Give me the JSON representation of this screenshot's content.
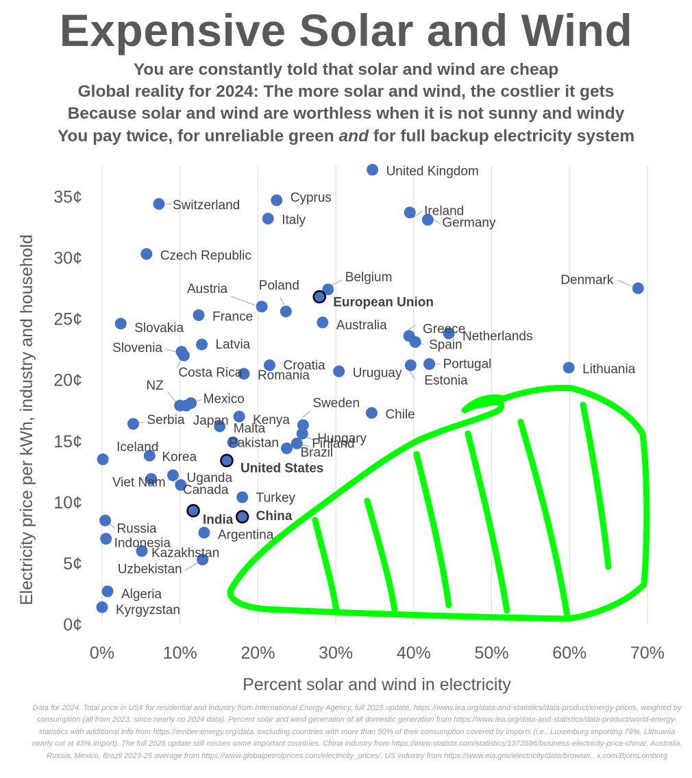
{
  "header": {
    "title": "Expensive Solar and Wind",
    "subtitles": [
      "You are constantly told that solar and wind are cheap",
      "Global reality for 2024: The more solar and wind, the costlier it gets",
      "Because solar and wind are worthless when it is not sunny and windy",
      "You pay twice, for unreliable green and for full backup electricity system"
    ],
    "subtitle4": {
      "before": "You pay twice, for unreliable green ",
      "emph": "and",
      "after": " for full backup electricity system"
    }
  },
  "colors": {
    "point": "#4472C4",
    "highlight_outline": "#000000",
    "text": "#595959",
    "annotation": "#00FF00",
    "grid": "#D9D9D9"
  },
  "chart_data": {
    "type": "scatter",
    "xlabel": "Percent solar and wind in electricity",
    "ylabel": "Electricity price per kWh, industry and household",
    "xlim": [
      0,
      70
    ],
    "ylim": [
      0,
      37.5
    ],
    "x_ticks": [
      0,
      10,
      20,
      30,
      40,
      50,
      60,
      70
    ],
    "x_tick_labels": [
      "0%",
      "10%",
      "20%",
      "30%",
      "40%",
      "50%",
      "60%",
      "70%"
    ],
    "y_ticks": [
      0,
      5,
      10,
      15,
      20,
      25,
      30,
      35
    ],
    "y_tick_labels": [
      "0¢",
      "5¢",
      "10¢",
      "15¢",
      "20¢",
      "25¢",
      "30¢",
      "35¢"
    ],
    "grid": "vertical",
    "points": [
      {
        "name": "United Kingdom",
        "x": 34.7,
        "y": 37.2
      },
      {
        "name": "Switzerland",
        "x": 7.3,
        "y": 34.4
      },
      {
        "name": "Cyprus",
        "x": 22.4,
        "y": 34.7
      },
      {
        "name": "Italy",
        "x": 21.3,
        "y": 33.2
      },
      {
        "name": "Ireland",
        "x": 39.5,
        "y": 33.7
      },
      {
        "name": "Germany",
        "x": 41.8,
        "y": 33.1
      },
      {
        "name": "Czech Republic",
        "x": 5.7,
        "y": 30.3
      },
      {
        "name": "Belgium",
        "x": 29.0,
        "y": 27.4
      },
      {
        "name": "European Union",
        "x": 27.9,
        "y": 26.8,
        "highlight": true
      },
      {
        "name": "Denmark",
        "x": 68.8,
        "y": 27.5
      },
      {
        "name": "Austria",
        "x": 20.5,
        "y": 26.0
      },
      {
        "name": "Poland",
        "x": 23.6,
        "y": 25.6
      },
      {
        "name": "France",
        "x": 12.4,
        "y": 25.3
      },
      {
        "name": "Australia",
        "x": 28.3,
        "y": 24.7
      },
      {
        "name": "Slovakia",
        "x": 2.4,
        "y": 24.6
      },
      {
        "name": "Greece",
        "x": 39.4,
        "y": 23.6
      },
      {
        "name": "Netherlands",
        "x": 44.5,
        "y": 23.8
      },
      {
        "name": "Spain",
        "x": 40.2,
        "y": 23.1
      },
      {
        "name": "Latvia",
        "x": 12.8,
        "y": 22.9
      },
      {
        "name": "Slovenia",
        "x": 10.2,
        "y": 22.3
      },
      {
        "name": "Costa Rica",
        "x": 10.5,
        "y": 22.0
      },
      {
        "name": "Croatia",
        "x": 21.5,
        "y": 21.2
      },
      {
        "name": "Portugal",
        "x": 42.0,
        "y": 21.3
      },
      {
        "name": "Estonia",
        "x": 39.6,
        "y": 21.2
      },
      {
        "name": "Lithuania",
        "x": 59.9,
        "y": 21.0
      },
      {
        "name": "Uruguay",
        "x": 30.4,
        "y": 20.7
      },
      {
        "name": "Romania",
        "x": 18.2,
        "y": 20.5
      },
      {
        "name": "NZ",
        "x": 10.0,
        "y": 17.9
      },
      {
        "name": "Mexico",
        "x": 11.4,
        "y": 18.1
      },
      {
        "name": "Japan",
        "x": 10.8,
        "y": 17.9
      },
      {
        "name": "Kenya",
        "x": 17.6,
        "y": 17.0
      },
      {
        "name": "Chile",
        "x": 34.6,
        "y": 17.3
      },
      {
        "name": "Sweden",
        "x": 25.8,
        "y": 16.3
      },
      {
        "name": "Serbia",
        "x": 4.0,
        "y": 16.4
      },
      {
        "name": "Malta",
        "x": 15.1,
        "y": 16.2
      },
      {
        "name": "Hungary",
        "x": 25.7,
        "y": 15.6
      },
      {
        "name": "Finland",
        "x": 25.0,
        "y": 14.8
      },
      {
        "name": "Pakistan",
        "x": 16.8,
        "y": 14.9
      },
      {
        "name": "Iceland",
        "x": 0.1,
        "y": 13.5
      },
      {
        "name": "Brazil",
        "x": 23.7,
        "y": 14.4
      },
      {
        "name": "Korea",
        "x": 6.1,
        "y": 13.8
      },
      {
        "name": "United States",
        "x": 16.0,
        "y": 13.4,
        "highlight": true
      },
      {
        "name": "Uganda",
        "x": 9.1,
        "y": 12.2
      },
      {
        "name": "Viet Nam",
        "x": 6.3,
        "y": 11.9
      },
      {
        "name": "Canada",
        "x": 10.1,
        "y": 11.4
      },
      {
        "name": "Turkey",
        "x": 18.0,
        "y": 10.4
      },
      {
        "name": "India",
        "x": 11.7,
        "y": 9.3,
        "highlight": true
      },
      {
        "name": "China",
        "x": 18.0,
        "y": 8.8,
        "highlight": true
      },
      {
        "name": "Russia",
        "x": 0.4,
        "y": 8.5
      },
      {
        "name": "Argentina",
        "x": 13.1,
        "y": 7.5
      },
      {
        "name": "Indonesia",
        "x": 0.5,
        "y": 7.0
      },
      {
        "name": "Kazakhstan",
        "x": 5.1,
        "y": 6.0
      },
      {
        "name": "Uzbekistan",
        "x": 12.9,
        "y": 5.3
      },
      {
        "name": "Algeria",
        "x": 0.7,
        "y": 2.7
      },
      {
        "name": "Kyrgyzstan",
        "x": 0.0,
        "y": 1.4
      }
    ]
  },
  "footnote": "Data for 2024. Total price in US¢ for residential and industry from International Energy Agency, full 2025 update, https://www.iea.org/data-and-statistics/data-product/energy-prices, weighted by consumption (all from 2023, since nearly no 2024 data). Percent solar and wind generation of all domestic generation from https://www.iea.org/data-and-statistics/data-product/world-energy-statistics with additional info from https://ember-energy.org/data, excluding countries with more than 50% of their consumption covered by imports (i.e., Luxemburg importing 78%, Lithuania nearly cut at 43% import). The full 2025 update still misses some important countries. China industry from https://www.statista.com/statistics/1373596/business-electricity-price-china/, Australia, Russia, Mexico, Brazil 2023-25 average from https://www.globalpetrolprices.com/electricity_prices/, US industry from https://www.eia.gov/electricity/data/browser.. x.com/BjornLomborg"
}
